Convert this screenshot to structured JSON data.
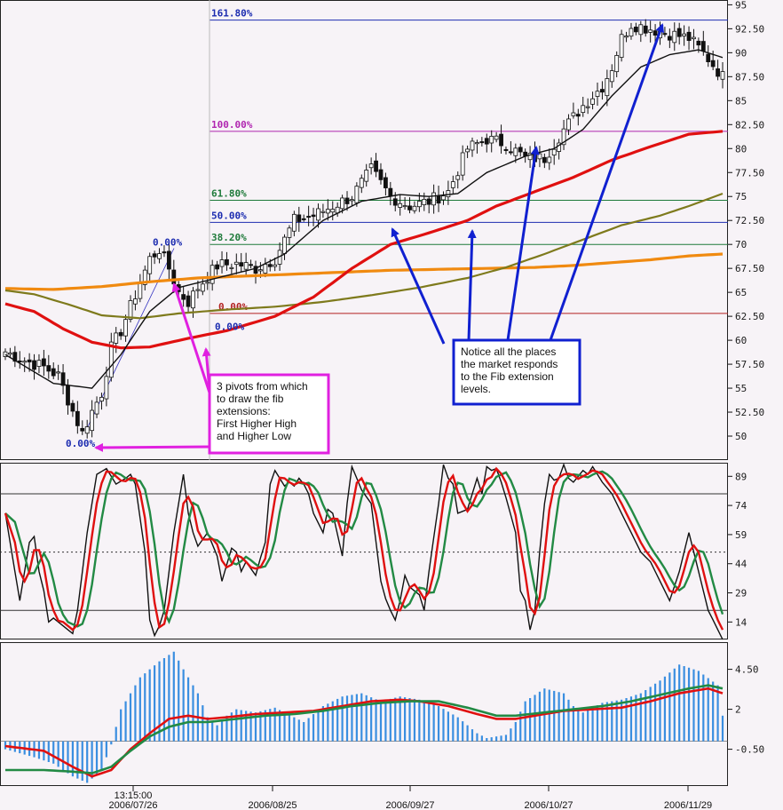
{
  "chart_data": [
    {
      "type": "candlestick",
      "panel": "price",
      "y_ticks": [
        "95",
        "92.50",
        "90",
        "87.50",
        "85",
        "82.50",
        "80",
        "77.50",
        "75",
        "72.50",
        "70",
        "67.50",
        "65",
        "62.50",
        "60",
        "57.50",
        "55",
        "52.50",
        "50"
      ],
      "ylim": [
        47.5,
        95.5
      ],
      "fib_levels": [
        {
          "label": "161.80%",
          "value": 93.4,
          "color": "#1c2cb0"
        },
        {
          "label": "100.00%",
          "value": 81.8,
          "color": "#b026b0"
        },
        {
          "label": "61.80%",
          "value": 74.6,
          "color": "#1e7a3a"
        },
        {
          "label": "50.00%",
          "value": 72.3,
          "color": "#1c2cb0"
        },
        {
          "label": "38.20%",
          "value": 70.0,
          "color": "#1e7a3a"
        },
        {
          "label": "0.00%",
          "value": 62.8,
          "color": "#b22020"
        }
      ],
      "pivot_labels": [
        {
          "label": "0.00%",
          "value": 50.0,
          "color": "#1c2cb0"
        },
        {
          "label": "0.00%",
          "value": 69.3,
          "color": "#1c2cb0"
        },
        {
          "label": "0.00%",
          "value": 60.5,
          "color": "#1c2cb0"
        }
      ],
      "ohlc": [],
      "annotations": [
        {
          "text": [
            "3 pivots from which",
            "to draw the fib",
            "extensions:",
            "First Higher High",
            "and Higher Low"
          ],
          "border": "#e020e0"
        },
        {
          "text": [
            "Notice all the places",
            "the market responds",
            "to the Fib extension",
            "levels."
          ],
          "border": "#1020d0"
        }
      ]
    },
    {
      "type": "line",
      "panel": "stochastic",
      "y_ticks": [
        "89",
        "74",
        "59",
        "44",
        "29",
        "14"
      ],
      "ylim": [
        5,
        96
      ],
      "levels": [
        80,
        50,
        20
      ]
    },
    {
      "type": "histogram",
      "panel": "macd",
      "y_ticks": [
        "4.50",
        "2",
        "-0.50"
      ],
      "ylim": [
        -2.8,
        6.2
      ]
    }
  ],
  "x_ticks": [
    "13:15:00",
    "2006/07/26",
    "2006/08/25",
    "2006/09/27",
    "2006/10/27",
    "2006/11/29"
  ],
  "colors": {
    "ma_fast": "#111111",
    "ma_20": "#e01010",
    "ma_50": "#7e7a1c",
    "ma_200": "#f08a10",
    "stoch_k": "#111111",
    "stoch_red": "#e01010",
    "stoch_green": "#228a44",
    "hist": "#3a8ee0",
    "macd_red": "#e01010",
    "macd_green": "#228a44",
    "pink": "#e020e0",
    "blue": "#1020d0"
  }
}
